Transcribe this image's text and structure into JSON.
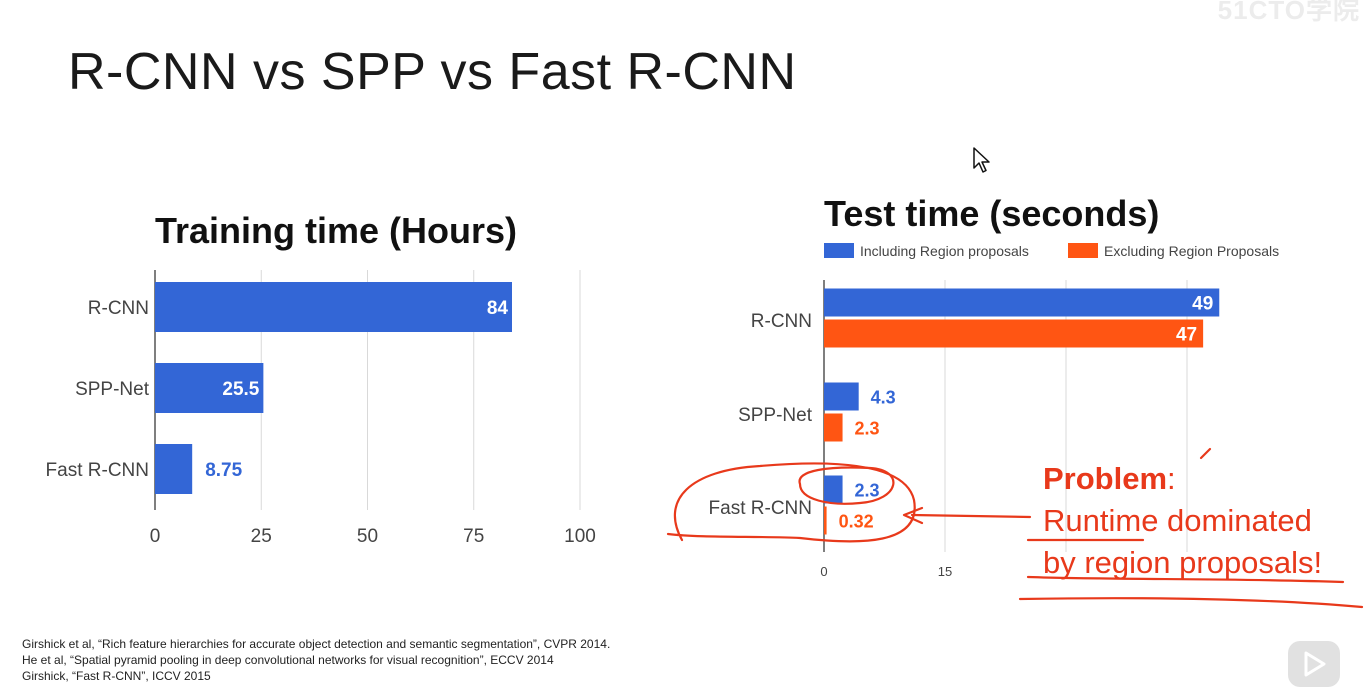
{
  "slide": {
    "title": "R-CNN vs SPP vs Fast R-CNN",
    "watermark": "51CTO学院"
  },
  "colors": {
    "blue": "#3366d6",
    "orange": "#ff5513",
    "annotation_red": "#e8391b",
    "grid": "#d9d9d9",
    "axis_text": "#444444"
  },
  "chart_data": [
    {
      "type": "bar",
      "orientation": "horizontal",
      "title": "Training time (Hours)",
      "categories": [
        "R-CNN",
        "SPP-Net",
        "Fast R-CNN"
      ],
      "series": [
        {
          "values": [
            84,
            25.5,
            8.75
          ]
        }
      ],
      "data_labels": [
        "84",
        "25.5",
        "8.75"
      ],
      "xlim": [
        0,
        100
      ],
      "xticks": [
        0,
        25,
        50,
        75,
        100
      ],
      "grid": true
    },
    {
      "type": "bar",
      "orientation": "horizontal",
      "title": "Test time (seconds)",
      "categories": [
        "R-CNN",
        "SPP-Net",
        "Fast R-CNN"
      ],
      "series": [
        {
          "name": "Including Region proposals",
          "values": [
            49,
            4.3,
            2.3
          ]
        },
        {
          "name": "Excluding Region Proposals",
          "values": [
            47,
            2.3,
            0.32
          ]
        }
      ],
      "data_labels": [
        [
          "49",
          "4.3",
          "2.3"
        ],
        [
          "47",
          "2.3",
          "0.32"
        ]
      ],
      "xlim": [
        0,
        60
      ],
      "xticks": [
        0,
        15
      ],
      "legend": "top",
      "grid": true
    }
  ],
  "annotation": {
    "problem_label": "Problem",
    "problem_colon": ":",
    "line1": "Runtime dominated",
    "line2": "by region proposals!"
  },
  "footnotes": [
    "Girshick et al, “Rich feature hierarchies for accurate object detection and semantic segmentation”, CVPR 2014.",
    "He et al, “Spatial pyramid pooling in deep convolutional networks for visual recognition”, ECCV 2014",
    "Girshick, “Fast R-CNN”, ICCV 2015"
  ],
  "icons": {
    "cursor": "mouse-pointer-icon",
    "play": "play-icon"
  }
}
